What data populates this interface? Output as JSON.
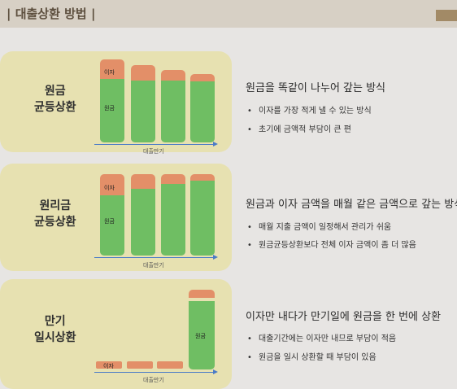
{
  "header": {
    "title": "| 대출상환 방법 |"
  },
  "methods": [
    {
      "label": "원금\n균등상환",
      "title": "원금을 똑같이 나누어 갚는 방식",
      "bullets": [
        "이자를 가장 적게 낼 수 있는 방식",
        "초기에 금액적 부담이 큰 편"
      ],
      "interest_label": "이자",
      "principal_label": "원금",
      "axis_label": "대출만기"
    },
    {
      "label": "원리금\n균등상환",
      "title": "원금과 이자 금액을 매월 같은 금액으로 갚는 방식",
      "bullets": [
        "매월 지출 금액이 일정해서 관리가 쉬움",
        "원금균등상환보다 전체 이자 금액이 좀 더 많음"
      ],
      "interest_label": "이자",
      "principal_label": "원금",
      "axis_label": "대출만기"
    },
    {
      "label": "만기\n일시상환",
      "title": "이자만 내다가 만기일에 원금을 한 번에 상환",
      "bullets": [
        "대출기간에는 이자만 내므로 부담이 적음",
        "원금을 일시 상환할 때 부담이 있음"
      ],
      "interest_label": "이자",
      "principal_label": "원금",
      "axis_label": "대출만기"
    }
  ],
  "colors": {
    "interest": "#e38f68",
    "principal": "#6fbe63",
    "panel": "#e7e1b1",
    "arrow": "#4a7bc7"
  }
}
